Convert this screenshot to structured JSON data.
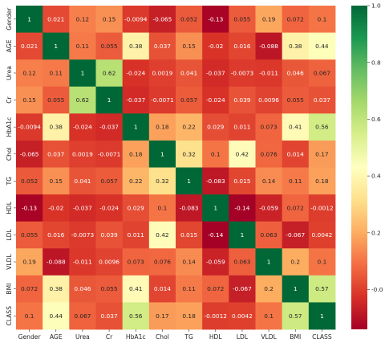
{
  "chart_data": {
    "type": "heatmap",
    "title": "",
    "labels": [
      "Gender",
      "AGE",
      "Urea",
      "Cr",
      "HbA1c",
      "Chol",
      "TG",
      "HDL",
      "LDL",
      "VLDL",
      "BMI",
      "CLASS"
    ],
    "cell_text": [
      [
        "1",
        "0.021",
        "0.12",
        "0.15",
        "-0.0094",
        "-0.065",
        "0.052",
        "-0.13",
        "0.055",
        "0.19",
        "0.072",
        "0.1"
      ],
      [
        "0.021",
        "1",
        "0.11",
        "0.055",
        "0.38",
        "0.037",
        "0.15",
        "-0.02",
        "0.016",
        "-0.088",
        "0.38",
        "0.44"
      ],
      [
        "0.12",
        "0.11",
        "1",
        "0.62",
        "-0.024",
        "0.0019",
        "0.041",
        "-0.037",
        "-0.0073",
        "-0.011",
        "0.046",
        "0.067"
      ],
      [
        "0.15",
        "0.055",
        "0.62",
        "1",
        "-0.037",
        "-0.0071",
        "0.057",
        "-0.024",
        "0.039",
        "0.0096",
        "0.055",
        "0.037"
      ],
      [
        "-0.0094",
        "0.38",
        "-0.024",
        "-0.037",
        "1",
        "0.18",
        "0.22",
        "0.029",
        "0.011",
        "0.073",
        "0.41",
        "0.56"
      ],
      [
        "-0.065",
        "0.037",
        "0.0019",
        "-0.0071",
        "0.18",
        "1",
        "0.32",
        "0.1",
        "0.42",
        "0.076",
        "0.014",
        "0.17"
      ],
      [
        "0.052",
        "0.15",
        "0.041",
        "0.057",
        "0.22",
        "0.32",
        "1",
        "-0.083",
        "0.015",
        "0.14",
        "0.11",
        "0.18"
      ],
      [
        "-0.13",
        "-0.02",
        "-0.037",
        "-0.024",
        "0.029",
        "0.1",
        "-0.083",
        "1",
        "-0.14",
        "-0.059",
        "0.072",
        "-0.0012"
      ],
      [
        "0.055",
        "0.016",
        "-0.0073",
        "0.039",
        "0.011",
        "0.42",
        "0.015",
        "-0.14",
        "1",
        "0.063",
        "-0.067",
        "0.0042"
      ],
      [
        "0.19",
        "-0.088",
        "-0.011",
        "0.0096",
        "0.073",
        "0.076",
        "0.14",
        "-0.059",
        "0.063",
        "1",
        "0.2",
        "0.1"
      ],
      [
        "0.072",
        "0.38",
        "0.046",
        "0.055",
        "0.41",
        "0.014",
        "0.11",
        "0.072",
        "-0.067",
        "0.2",
        "1",
        "0.57"
      ],
      [
        "0.1",
        "0.44",
        "0.067",
        "0.037",
        "0.56",
        "0.17",
        "0.18",
        "-0.0012",
        "0.0042",
        "0.1",
        "0.57",
        "1"
      ]
    ],
    "colorbar": {
      "ticks": [
        "-0.0",
        "0.2",
        "0.4",
        "0.6",
        "0.8",
        "1.0"
      ],
      "tick_values": [
        0.0,
        0.2,
        0.4,
        0.6,
        0.8,
        1.0
      ],
      "range": [
        -0.14,
        1.0
      ],
      "colormap": "RdYlGn",
      "stops": [
        "#a50026",
        "#d73027",
        "#f46d43",
        "#fdae61",
        "#fee08b",
        "#ffffbf",
        "#d9ef8b",
        "#a6d96a",
        "#66bd63",
        "#1a9850",
        "#006837"
      ]
    }
  }
}
